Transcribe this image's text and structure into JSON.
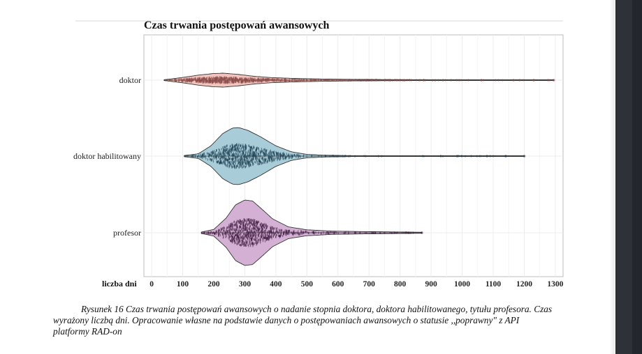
{
  "figure": {
    "caption": "Rysunek 16 Czas trwania postępowań awansowych o nadanie stopnia doktora, doktora habilitowanego, tytułu profesora.  Czas wyrażony liczbą dni. Opracowanie własne na podstawie danych o postępowaniach awansowych o statusie ,,poprawny\" z API platformy RAD-on"
  },
  "chart_data": {
    "type": "violin",
    "orientation": "horizontal",
    "title": "Czas trwania postępowań awansowych",
    "xlabel": "liczba dni",
    "ylabel": "",
    "xlim": [
      -25,
      1325
    ],
    "x_ticks": [
      0,
      100,
      200,
      300,
      400,
      500,
      600,
      700,
      800,
      900,
      1000,
      1100,
      1200,
      1300
    ],
    "grid": true,
    "legend": "none",
    "categories": [
      "doktor",
      "doktor habilitowany",
      "profesor"
    ],
    "series": [
      {
        "name": "doktor",
        "color": "#f2c4bd",
        "point_color": "#8a4a48",
        "min": 40,
        "max": 1295,
        "peak": 215,
        "density": [
          [
            40,
            0.05
          ],
          [
            70,
            0.22
          ],
          [
            110,
            0.45
          ],
          [
            150,
            0.72
          ],
          [
            200,
            0.95
          ],
          [
            230,
            1.0
          ],
          [
            280,
            0.82
          ],
          [
            330,
            0.55
          ],
          [
            380,
            0.38
          ],
          [
            450,
            0.26
          ],
          [
            550,
            0.16
          ],
          [
            650,
            0.11
          ],
          [
            750,
            0.08
          ],
          [
            850,
            0.06
          ],
          [
            950,
            0.045
          ],
          [
            1050,
            0.035
          ],
          [
            1150,
            0.025
          ],
          [
            1250,
            0.015
          ],
          [
            1295,
            0.01
          ]
        ]
      },
      {
        "name": "doktor habilitowany",
        "color": "#a8ccd8",
        "point_color": "#1a3d4e",
        "min": 105,
        "max": 1200,
        "peak": 270,
        "density": [
          [
            105,
            0.02
          ],
          [
            150,
            0.08
          ],
          [
            190,
            0.35
          ],
          [
            230,
            0.8
          ],
          [
            260,
            0.98
          ],
          [
            280,
            1.0
          ],
          [
            310,
            0.9
          ],
          [
            350,
            0.68
          ],
          [
            400,
            0.36
          ],
          [
            450,
            0.15
          ],
          [
            500,
            0.06
          ],
          [
            560,
            0.03
          ],
          [
            650,
            0.015
          ],
          [
            800,
            0.01
          ],
          [
            1000,
            0.008
          ],
          [
            1200,
            0.005
          ]
        ]
      },
      {
        "name": "profesor",
        "color": "#d4b0d4",
        "point_color": "#3c1a3e",
        "min": 160,
        "max": 870,
        "peak": 305,
        "density": [
          [
            160,
            0.02
          ],
          [
            200,
            0.1
          ],
          [
            240,
            0.45
          ],
          [
            270,
            0.85
          ],
          [
            300,
            1.0
          ],
          [
            325,
            0.97
          ],
          [
            355,
            0.72
          ],
          [
            390,
            0.42
          ],
          [
            440,
            0.18
          ],
          [
            500,
            0.09
          ],
          [
            580,
            0.05
          ],
          [
            680,
            0.035
          ],
          [
            780,
            0.025
          ],
          [
            870,
            0.015
          ]
        ]
      }
    ]
  }
}
